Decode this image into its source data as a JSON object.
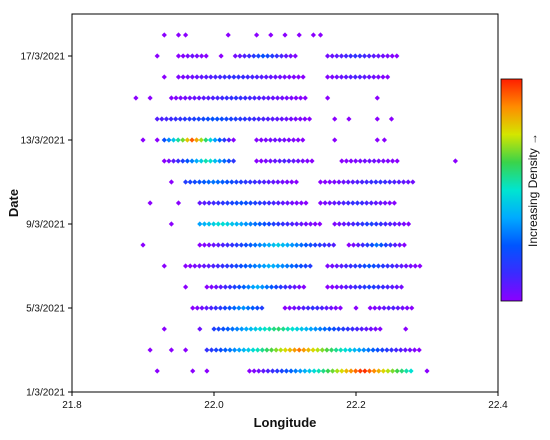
{
  "chart_data": {
    "type": "scatter",
    "xlabel": "Longitude",
    "ylabel": "Date",
    "x_axis": {
      "min": 21.8,
      "max": 22.4,
      "ticks": [
        "21.8",
        "22.0",
        "22.2",
        "22.4"
      ],
      "tick_values": [
        21.8,
        22.0,
        22.2,
        22.4
      ]
    },
    "y_axis": {
      "min_date": "2021-03-01",
      "max_date": "2021-03-19",
      "ticks": [
        "1/3/2021",
        "5/3/2021",
        "9/3/2021",
        "13/3/2021",
        "17/3/2021"
      ],
      "tick_dates": [
        "2021-03-01",
        "2021-03-05",
        "2021-03-09",
        "2021-03-13",
        "2021-03-17"
      ]
    },
    "colorbar": {
      "label": "Increasing Density →",
      "colors": [
        "#8b00ff",
        "#3a2bff",
        "#0055ff",
        "#00aaff",
        "#00e5d0",
        "#3ad34a",
        "#d4e600",
        "#ff8c00",
        "#ff1e00"
      ]
    },
    "grid": false,
    "marker": "diamond",
    "days": [
      {
        "date": "2021-03-02",
        "points": [
          {
            "x": 21.92,
            "d": 0.0
          },
          {
            "x": 21.97,
            "d": 0.0
          },
          {
            "x": 21.99,
            "d": 0.0
          },
          {
            "segment": [
              22.05,
              22.28
            ],
            "peak": 22.21,
            "dmax": 1.0
          },
          {
            "x": 22.3,
            "d": 0.0
          }
        ]
      },
      {
        "date": "2021-03-03",
        "points": [
          {
            "x": 21.91,
            "d": 0.0
          },
          {
            "x": 21.94,
            "d": 0.0
          },
          {
            "x": 21.96,
            "d": 0.0
          },
          {
            "segment": [
              21.99,
              22.29
            ],
            "peak": 22.12,
            "dmax": 0.9
          }
        ]
      },
      {
        "date": "2021-03-04",
        "points": [
          {
            "x": 21.93,
            "d": 0.0
          },
          {
            "x": 21.98,
            "d": 0.05
          },
          {
            "segment": [
              22.0,
              22.24
            ],
            "peak": 22.09,
            "dmax": 0.6
          },
          {
            "x": 22.27,
            "d": 0.0
          }
        ]
      },
      {
        "date": "2021-03-05",
        "points": [
          {
            "segment": [
              21.97,
              22.07
            ],
            "peak": 22.04,
            "dmax": 0.35
          },
          {
            "segment": [
              22.1,
              22.18
            ],
            "peak": 22.14,
            "dmax": 0.15
          },
          {
            "x": 22.2,
            "d": 0.0
          },
          {
            "segment": [
              22.22,
              22.28
            ],
            "peak": 22.25,
            "dmax": 0.1
          }
        ]
      },
      {
        "date": "2021-03-06",
        "points": [
          {
            "x": 21.96,
            "d": 0.0
          },
          {
            "segment": [
              21.99,
              22.13
            ],
            "peak": 22.06,
            "dmax": 0.4
          },
          {
            "segment": [
              22.16,
              22.27
            ],
            "peak": 22.22,
            "dmax": 0.2
          }
        ]
      },
      {
        "date": "2021-03-07",
        "points": [
          {
            "x": 21.93,
            "d": 0.0
          },
          {
            "segment": [
              21.96,
              22.14
            ],
            "peak": 22.08,
            "dmax": 0.4
          },
          {
            "segment": [
              22.16,
              22.29
            ],
            "peak": 22.22,
            "dmax": 0.25
          }
        ]
      },
      {
        "date": "2021-03-08",
        "points": [
          {
            "x": 21.9,
            "d": 0.0
          },
          {
            "segment": [
              21.98,
              22.17
            ],
            "peak": 22.09,
            "dmax": 0.45
          },
          {
            "segment": [
              22.19,
              22.27
            ],
            "peak": 22.23,
            "dmax": 0.3
          }
        ]
      },
      {
        "date": "2021-03-09",
        "points": [
          {
            "x": 21.94,
            "d": 0.0
          },
          {
            "segment": [
              21.98,
              22.15
            ],
            "peak": 22.01,
            "dmax": 0.5
          },
          {
            "segment": [
              22.17,
              22.28
            ],
            "peak": 22.22,
            "dmax": 0.2
          }
        ]
      },
      {
        "date": "2021-03-10",
        "points": [
          {
            "x": 21.91,
            "d": 0.0
          },
          {
            "x": 21.95,
            "d": 0.0
          },
          {
            "segment": [
              21.98,
              22.13
            ],
            "peak": 22.04,
            "dmax": 0.25
          },
          {
            "segment": [
              22.15,
              22.26
            ],
            "peak": 22.2,
            "dmax": 0.15
          }
        ]
      },
      {
        "date": "2021-03-11",
        "points": [
          {
            "x": 21.94,
            "d": 0.0
          },
          {
            "segment": [
              21.96,
              22.12
            ],
            "peak": 22.0,
            "dmax": 0.3
          },
          {
            "segment": [
              22.15,
              22.28
            ],
            "peak": 22.23,
            "dmax": 0.15
          }
        ]
      },
      {
        "date": "2021-03-12",
        "points": [
          {
            "segment": [
              21.93,
              22.03
            ],
            "peak": 21.99,
            "dmax": 0.55
          },
          {
            "segment": [
              22.06,
              22.14
            ],
            "peak": 22.1,
            "dmax": 0.1
          },
          {
            "segment": [
              22.18,
              22.26
            ],
            "peak": 22.22,
            "dmax": 0.05
          },
          {
            "x": 22.34,
            "d": 0.0
          }
        ]
      },
      {
        "date": "2021-03-13",
        "points": [
          {
            "x": 21.9,
            "d": 0.0
          },
          {
            "x": 21.92,
            "d": 0.0
          },
          {
            "segment": [
              21.93,
              22.03
            ],
            "peak": 21.97,
            "dmax": 0.95
          },
          {
            "segment": [
              22.06,
              22.13
            ],
            "peak": 22.09,
            "dmax": 0.05
          },
          {
            "x": 22.17,
            "d": 0.0
          },
          {
            "x": 22.23,
            "d": 0.0
          },
          {
            "x": 22.24,
            "d": 0.0
          }
        ]
      },
      {
        "date": "2021-03-14",
        "points": [
          {
            "segment": [
              21.92,
              22.14
            ],
            "peak": 22.0,
            "dmax": 0.25
          },
          {
            "x": 22.17,
            "d": 0.0
          },
          {
            "x": 22.19,
            "d": 0.0
          },
          {
            "x": 22.23,
            "d": 0.0
          },
          {
            "x": 22.25,
            "d": 0.0
          }
        ]
      },
      {
        "date": "2021-03-15",
        "points": [
          {
            "x": 21.89,
            "d": 0.0
          },
          {
            "x": 21.91,
            "d": 0.0
          },
          {
            "segment": [
              21.94,
              22.13
            ],
            "peak": 22.03,
            "dmax": 0.15
          },
          {
            "x": 22.16,
            "d": 0.0
          },
          {
            "x": 22.23,
            "d": 0.0
          }
        ]
      },
      {
        "date": "2021-03-16",
        "points": [
          {
            "x": 21.93,
            "d": 0.0
          },
          {
            "segment": [
              21.95,
              22.13
            ],
            "peak": 22.03,
            "dmax": 0.15
          },
          {
            "segment": [
              22.16,
              22.25
            ],
            "peak": 22.2,
            "dmax": 0.1
          }
        ]
      },
      {
        "date": "2021-03-17",
        "points": [
          {
            "x": 21.92,
            "d": 0.0
          },
          {
            "segment": [
              21.95,
              21.99
            ],
            "peak": 21.97,
            "dmax": 0.05
          },
          {
            "x": 22.01,
            "d": 0.0
          },
          {
            "segment": [
              22.03,
              22.12
            ],
            "peak": 22.07,
            "dmax": 0.25
          },
          {
            "segment": [
              22.16,
              22.26
            ],
            "peak": 22.2,
            "dmax": 0.15
          }
        ]
      },
      {
        "date": "2021-03-18",
        "points": [
          {
            "x": 21.93,
            "d": 0.0
          },
          {
            "x": 21.95,
            "d": 0.0
          },
          {
            "x": 21.96,
            "d": 0.0
          },
          {
            "x": 22.02,
            "d": 0.0
          },
          {
            "x": 22.06,
            "d": 0.0
          },
          {
            "x": 22.08,
            "d": 0.0
          },
          {
            "x": 22.1,
            "d": 0.0
          },
          {
            "x": 22.12,
            "d": 0.0
          },
          {
            "x": 22.14,
            "d": 0.0
          },
          {
            "x": 22.15,
            "d": 0.0
          }
        ]
      }
    ]
  }
}
